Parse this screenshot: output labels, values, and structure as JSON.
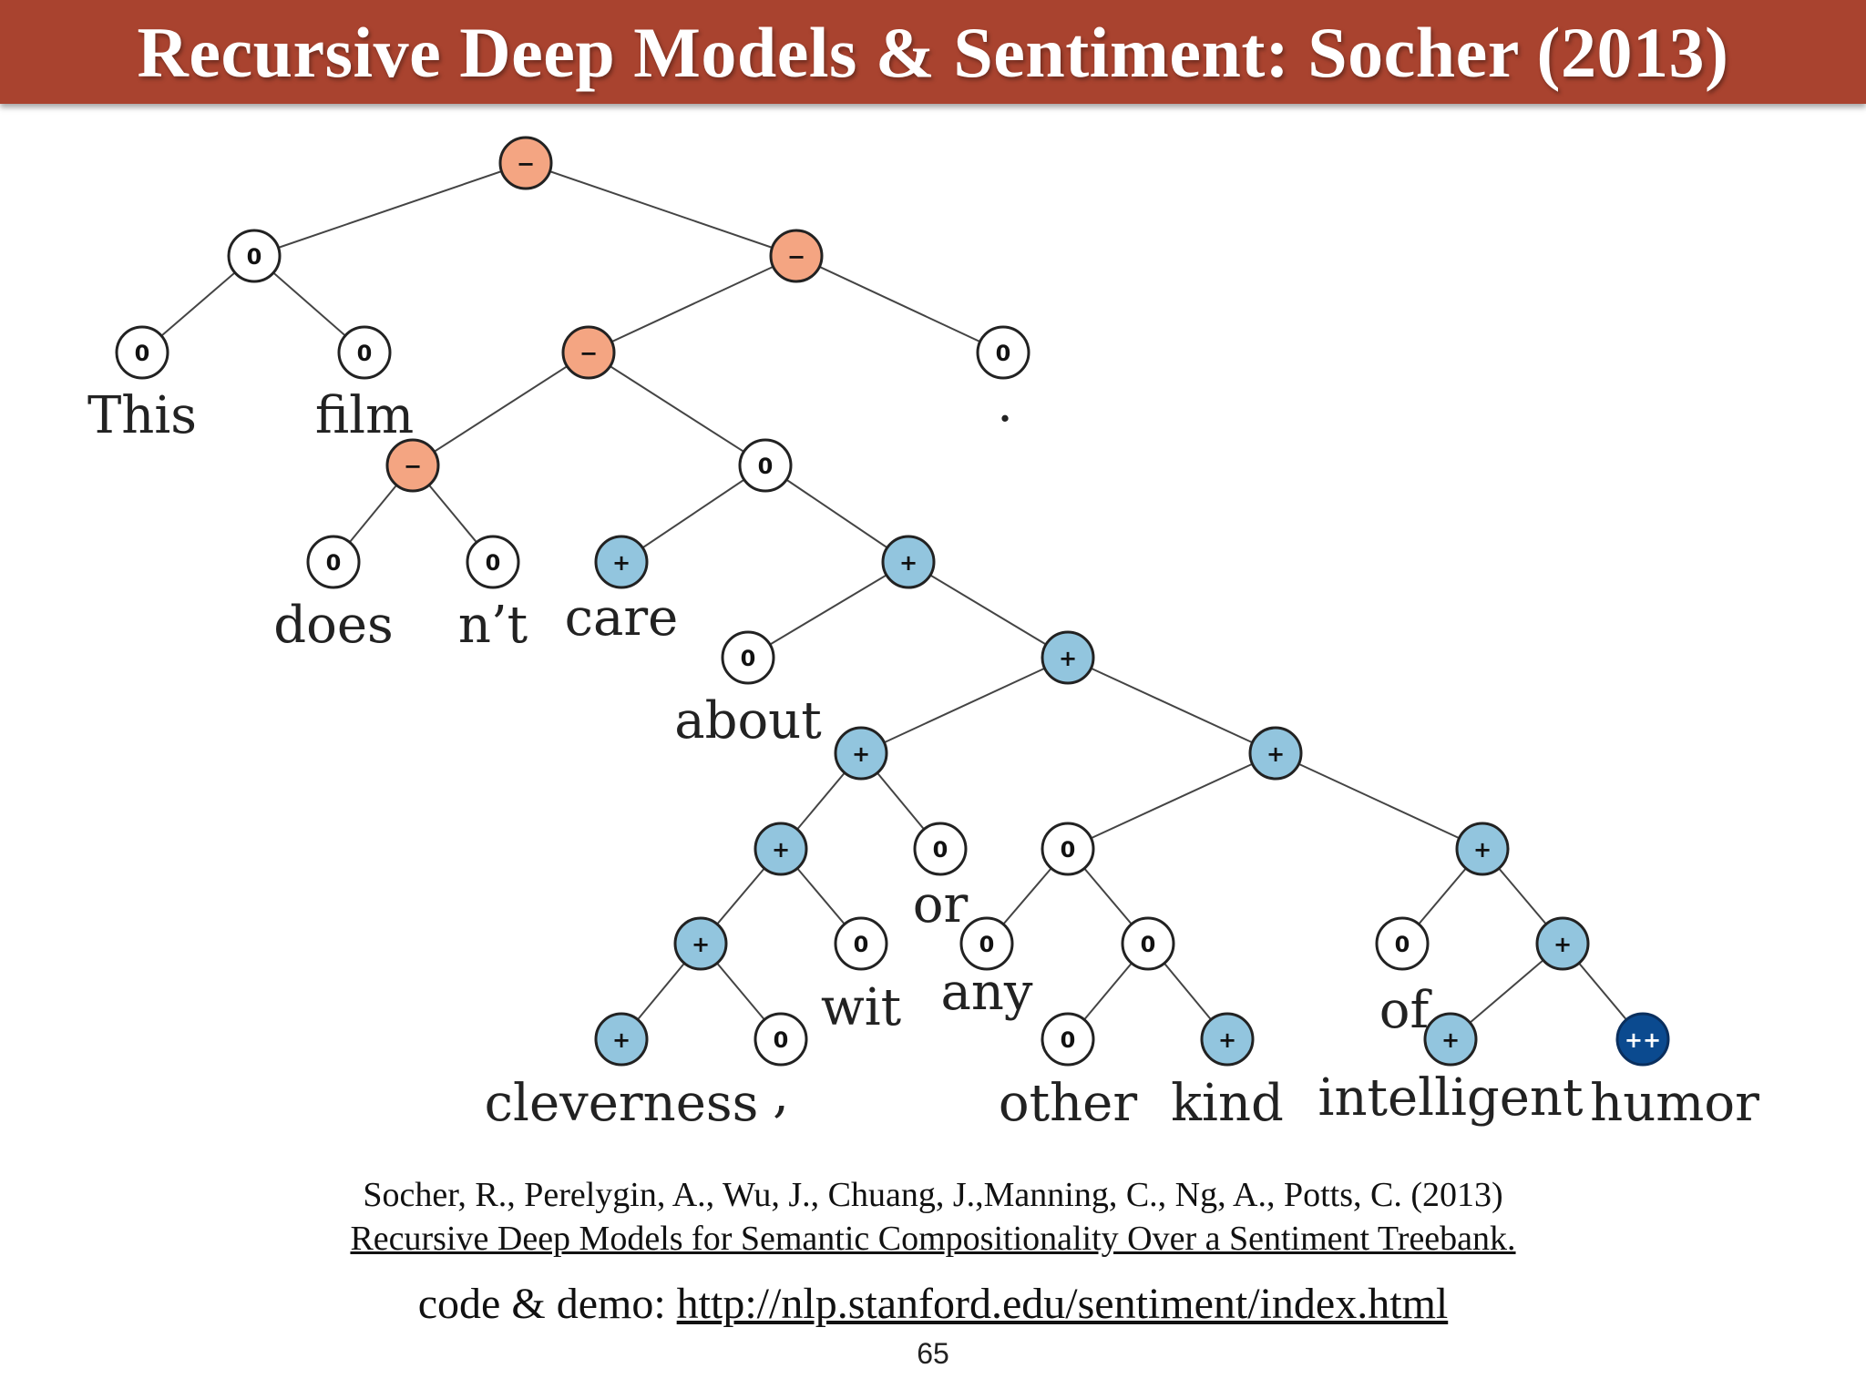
{
  "slide": {
    "title": "Recursive Deep Models & Sentiment: Socher (2013)",
    "citation_authors": "Socher, R., Perelygin, A., Wu, J., Chuang, J.,Manning, C., Ng, A., Potts, C. (2013)",
    "citation_title": "Recursive Deep Models for Semantic Compositionality Over a Sentiment Treebank.",
    "code_demo_label": "code & demo: ",
    "code_demo_url": "http://nlp.stanford.edu/sentiment/index.html",
    "page_number": "65"
  },
  "colors": {
    "title_bar": "#a9432f",
    "negative": "#f4a582",
    "neutral": "#ffffff",
    "positive": "#92c5de",
    "very_positive": "#0b4a8f"
  },
  "tree": {
    "nodes": [
      {
        "id": "root",
        "label": "−",
        "sentiment": "negative",
        "word": ""
      },
      {
        "id": "n_thisfilm",
        "label": "0",
        "sentiment": "neutral",
        "word": ""
      },
      {
        "id": "w_this",
        "label": "0",
        "sentiment": "neutral",
        "word": "This"
      },
      {
        "id": "w_film",
        "label": "0",
        "sentiment": "neutral",
        "word": "film"
      },
      {
        "id": "n_rest",
        "label": "−",
        "sentiment": "negative",
        "word": ""
      },
      {
        "id": "n_vp",
        "label": "−",
        "sentiment": "negative",
        "word": ""
      },
      {
        "id": "w_period",
        "label": "0",
        "sentiment": "neutral",
        "word": "."
      },
      {
        "id": "n_doesnt",
        "label": "−",
        "sentiment": "negative",
        "word": ""
      },
      {
        "id": "w_does",
        "label": "0",
        "sentiment": "neutral",
        "word": "does"
      },
      {
        "id": "w_nt",
        "label": "0",
        "sentiment": "neutral",
        "word": "n’t"
      },
      {
        "id": "n_care_about",
        "label": "0",
        "sentiment": "neutral",
        "word": ""
      },
      {
        "id": "w_care",
        "label": "+",
        "sentiment": "positive",
        "word": "care"
      },
      {
        "id": "n_pp",
        "label": "+",
        "sentiment": "positive",
        "word": ""
      },
      {
        "id": "w_about",
        "label": "0",
        "sentiment": "neutral",
        "word": "about"
      },
      {
        "id": "n_np",
        "label": "+",
        "sentiment": "positive",
        "word": ""
      },
      {
        "id": "n_clev_or",
        "label": "+",
        "sentiment": "positive",
        "word": ""
      },
      {
        "id": "n_clev_wit",
        "label": "+",
        "sentiment": "positive",
        "word": ""
      },
      {
        "id": "n_clev_comma",
        "label": "+",
        "sentiment": "positive",
        "word": ""
      },
      {
        "id": "w_cleverness",
        "label": "+",
        "sentiment": "positive",
        "word": "cleverness"
      },
      {
        "id": "w_comma",
        "label": "0",
        "sentiment": "neutral",
        "word": ","
      },
      {
        "id": "w_wit",
        "label": "0",
        "sentiment": "neutral",
        "word": "wit"
      },
      {
        "id": "w_or",
        "label": "0",
        "sentiment": "neutral",
        "word": "or"
      },
      {
        "id": "n_any_humor",
        "label": "+",
        "sentiment": "positive",
        "word": ""
      },
      {
        "id": "n_any_kind",
        "label": "0",
        "sentiment": "neutral",
        "word": ""
      },
      {
        "id": "w_any",
        "label": "0",
        "sentiment": "neutral",
        "word": "any"
      },
      {
        "id": "n_other_kind",
        "label": "0",
        "sentiment": "neutral",
        "word": ""
      },
      {
        "id": "w_other",
        "label": "0",
        "sentiment": "neutral",
        "word": "other"
      },
      {
        "id": "w_kind",
        "label": "+",
        "sentiment": "positive",
        "word": "kind"
      },
      {
        "id": "n_of_humor",
        "label": "+",
        "sentiment": "positive",
        "word": ""
      },
      {
        "id": "w_of",
        "label": "0",
        "sentiment": "neutral",
        "word": "of"
      },
      {
        "id": "n_int_humor",
        "label": "+",
        "sentiment": "positive",
        "word": ""
      },
      {
        "id": "w_intelligent",
        "label": "+",
        "sentiment": "positive",
        "word": "intelligent"
      },
      {
        "id": "w_humor",
        "label": "++",
        "sentiment": "very_positive",
        "word": "humor"
      }
    ],
    "edges": [
      [
        "root",
        "n_thisfilm"
      ],
      [
        "root",
        "n_rest"
      ],
      [
        "n_thisfilm",
        "w_this"
      ],
      [
        "n_thisfilm",
        "w_film"
      ],
      [
        "n_rest",
        "n_vp"
      ],
      [
        "n_rest",
        "w_period"
      ],
      [
        "n_vp",
        "n_doesnt"
      ],
      [
        "n_vp",
        "n_care_about"
      ],
      [
        "n_doesnt",
        "w_does"
      ],
      [
        "n_doesnt",
        "w_nt"
      ],
      [
        "n_care_about",
        "w_care"
      ],
      [
        "n_care_about",
        "n_pp"
      ],
      [
        "n_pp",
        "w_about"
      ],
      [
        "n_pp",
        "n_np"
      ],
      [
        "n_np",
        "n_clev_or"
      ],
      [
        "n_np",
        "n_any_humor"
      ],
      [
        "n_clev_or",
        "n_clev_wit"
      ],
      [
        "n_clev_or",
        "w_or"
      ],
      [
        "n_clev_wit",
        "n_clev_comma"
      ],
      [
        "n_clev_wit",
        "w_wit"
      ],
      [
        "n_clev_comma",
        "w_cleverness"
      ],
      [
        "n_clev_comma",
        "w_comma"
      ],
      [
        "n_any_humor",
        "n_any_kind"
      ],
      [
        "n_any_humor",
        "n_of_humor"
      ],
      [
        "n_any_kind",
        "w_any"
      ],
      [
        "n_any_kind",
        "n_other_kind"
      ],
      [
        "n_other_kind",
        "w_other"
      ],
      [
        "n_other_kind",
        "w_kind"
      ],
      [
        "n_of_humor",
        "w_of"
      ],
      [
        "n_of_humor",
        "n_int_humor"
      ],
      [
        "n_int_humor",
        "w_intelligent"
      ],
      [
        "n_int_humor",
        "w_humor"
      ]
    ]
  }
}
